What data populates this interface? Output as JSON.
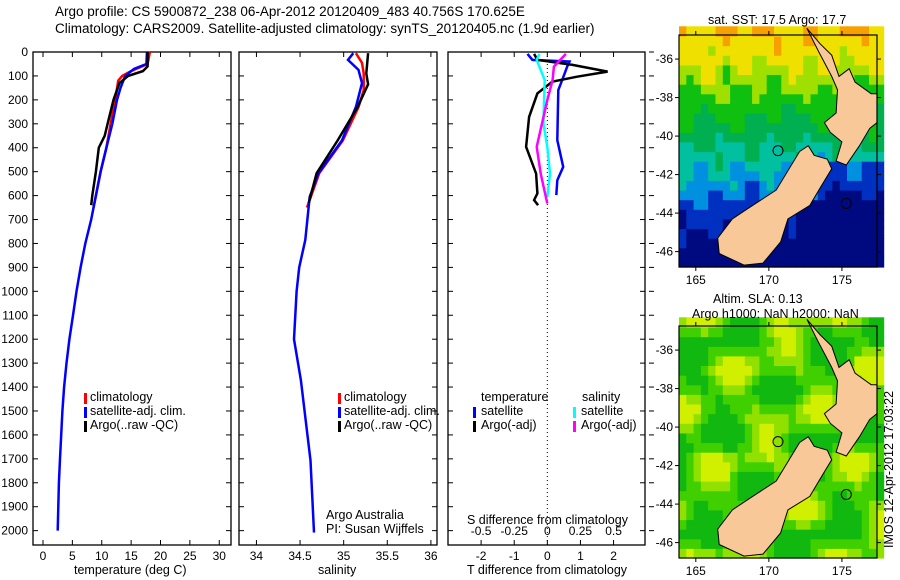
{
  "header": {
    "title_line1": "Argo profile: CS 5900872_238 06-Apr-2012 20120409_483 40.756S 170.625E",
    "title_line2": "Climatology: CARS2009. Satellite-adjusted climatology: synTS_20120405.nc (1.9d earlier)"
  },
  "credits": {
    "line1": "Argo Australia",
    "line2": "PI: Susan Wijffels"
  },
  "footer_stamp": "IMOS 12-Apr-2012 17:03:22",
  "colors": {
    "climatology": "#ff0000",
    "satellite": "#0000ff",
    "argo": "#000000",
    "s_satellite": "#00ffff",
    "s_argo": "#ff00ff"
  },
  "chart_data": {
    "depth_axis": {
      "ylim": [
        0,
        2060
      ],
      "ticks": [
        0,
        100,
        200,
        300,
        400,
        500,
        600,
        700,
        800,
        900,
        1000,
        1100,
        1200,
        1300,
        1400,
        1500,
        1600,
        1700,
        1800,
        1900,
        2000
      ],
      "reversed": true
    },
    "panels": [
      {
        "type": "line",
        "xlabel": "temperature (deg C)",
        "xlim": [
          -1.7,
          32
        ],
        "xticks": [
          0,
          5,
          10,
          15,
          20,
          25,
          30
        ],
        "legend": [
          "climatology",
          "satellite-adj. clim.",
          "Argo(..raw -QC)"
        ],
        "series": [
          {
            "name": "climatology",
            "color": "#ff0000",
            "depth": [
              0,
              50,
              80,
              100,
              120,
              200,
              300,
              400,
              500,
              600,
              650
            ],
            "values": [
              18.2,
              17.8,
              15,
              13.5,
              12.8,
              12.3,
              11.5,
              10.8,
              9.8,
              9.0,
              8.6
            ]
          },
          {
            "name": "satellite-adj. clim.",
            "color": "#0000ff",
            "depth": [
              0,
              50,
              70,
              100,
              150,
              200,
              300,
              400,
              500,
              600,
              700,
              800,
              900,
              1000,
              1100,
              1200,
              1300,
              1400,
              1500,
              1600,
              1700,
              1800,
              1900,
              2000
            ],
            "values": [
              17.7,
              17.6,
              15.5,
              14,
              13.2,
              12.6,
              11.8,
              10.8,
              9.8,
              9.0,
              8.2,
              7.2,
              6.4,
              5.7,
              5.1,
              4.5,
              4.0,
              3.6,
              3.3,
              3.1,
              2.9,
              2.7,
              2.6,
              2.5
            ]
          },
          {
            "name": "Argo(..raw -QC)",
            "color": "#000000",
            "depth": [
              0,
              60,
              80,
              100,
              130,
              200,
              300,
              350,
              400,
              500,
              600,
              640
            ],
            "values": [
              17.8,
              17.8,
              17,
              14.5,
              13,
              12,
              11,
              10.5,
              9.5,
              9.0,
              8.4,
              8.2
            ]
          }
        ]
      },
      {
        "type": "line",
        "xlabel": "salinity",
        "xlim": [
          33.8,
          36.07
        ],
        "xticks": [
          34,
          34.5,
          35,
          35.5,
          36
        ],
        "legend": [
          "climatology",
          "satellite-adj. clim.",
          "Argo(..raw -QC)"
        ],
        "series": [
          {
            "name": "climatology",
            "color": "#ff0000",
            "depth": [
              5,
              45,
              90,
              160,
              230,
              370,
              507,
              650
            ],
            "values": [
              35.14,
              35.21,
              35.23,
              35.23,
              35.17,
              34.99,
              34.72,
              34.58
            ]
          },
          {
            "name": "satellite-adj. clim.",
            "color": "#0000ff",
            "depth": [
              5,
              33,
              75,
              130,
              230,
              370,
              507,
              605,
              785,
              900,
              1000,
              1200,
              1372,
              1707,
              2008
            ],
            "values": [
              35.11,
              35.05,
              35.17,
              35.21,
              35.14,
              34.98,
              34.71,
              34.61,
              34.56,
              34.49,
              34.46,
              34.43,
              34.51,
              34.62,
              34.66
            ]
          },
          {
            "name": "Argo(..raw -QC)",
            "color": "#000000",
            "depth": [
              5,
              90,
              135,
              230,
              370,
              507,
              630
            ],
            "values": [
              35.28,
              35.26,
              35.28,
              35.16,
              34.93,
              34.69,
              34.6
            ]
          }
        ]
      },
      {
        "type": "line",
        "xlabel": "T difference from climatology",
        "xlabel2": "S difference from climatology",
        "xlim": [
          -3.0,
          2.95
        ],
        "xticks": [
          -2,
          -1,
          0,
          1,
          2
        ],
        "xticks2": [
          "-0.5",
          "-0.25",
          "0",
          "0.25",
          "0.5"
        ],
        "legend_temperature_title": "temperature",
        "legend_salinity_title": "salinity",
        "legend": [
          "satellite",
          "Argo(-adj)",
          "satellite",
          "Argo(-adj)"
        ],
        "series": [
          {
            "name": "T satellite",
            "color": "#0000ff",
            "unit": "T",
            "depth": [
              8,
              33,
              40,
              61,
              117,
              159,
              368,
              480,
              536,
              598
            ],
            "values": [
              -0.6,
              -0.45,
              0.67,
              0.6,
              0.45,
              0.33,
              0.3,
              0.48,
              0.3,
              0.27
            ]
          },
          {
            "name": "T Argo(-adj)",
            "color": "#000000",
            "unit": "T",
            "depth": [
              8,
              33,
              54,
              82,
              103,
              124,
              173,
              271,
              396,
              508,
              591,
              619,
              640
            ],
            "values": [
              -0.4,
              -0.3,
              0.76,
              1.82,
              0.9,
              0.15,
              -0.3,
              -0.55,
              -0.64,
              -0.34,
              -0.3,
              -0.4,
              -0.28
            ]
          },
          {
            "name": "S satellite",
            "color": "#00ffff",
            "unit": "S",
            "depth": [
              8,
              33,
              117,
              299,
              396,
              508,
              605
            ],
            "values": [
              -0.06,
              -0.08,
              -0.02,
              -0.03,
              0,
              0.02,
              0
            ]
          },
          {
            "name": "S Argo(-adj)",
            "color": "#ff00ff",
            "unit": "S",
            "depth": [
              8,
              61,
              117,
              201,
              396,
              508,
              633
            ],
            "values": [
              0.14,
              0.05,
              0.04,
              0.0,
              -0.08,
              -0.05,
              0
            ]
          }
        ]
      }
    ],
    "maps": [
      {
        "type": "heatmap",
        "title": "sat. SST: 17.5 Argo: 17.7",
        "xticks": [
          165,
          170,
          175
        ],
        "yticks": [
          -36,
          -38,
          -40,
          -42,
          -44,
          -46
        ],
        "xlim": [
          163.85,
          177.4
        ],
        "ylim": [
          -46.8,
          -34.75
        ],
        "palette": "sst"
      },
      {
        "type": "heatmap",
        "title1": "Altim. SLA: 0.13",
        "title2": "Argo h1000: NaN h2000: NaN",
        "xticks": [
          165,
          170,
          175
        ],
        "yticks": [
          -36,
          -38,
          -40,
          -42,
          -44,
          -46
        ],
        "xlim": [
          163.85,
          177.4
        ],
        "ylim": [
          -46.8,
          -34.75
        ],
        "palette": "sla"
      }
    ],
    "argo_position": {
      "lon": 170.625,
      "lat": -40.756
    }
  }
}
